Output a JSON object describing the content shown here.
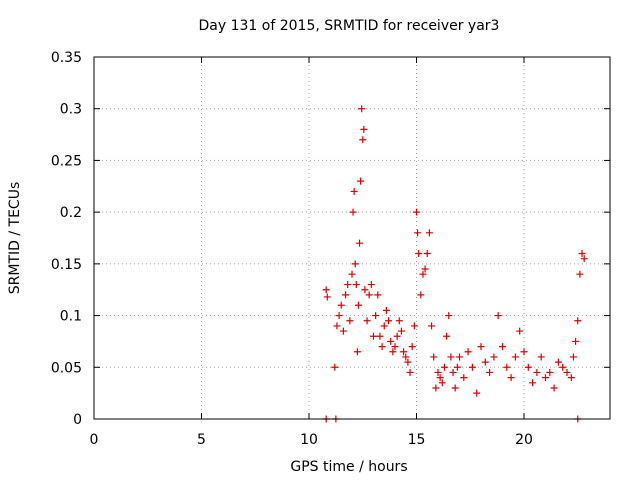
{
  "chart_data": {
    "type": "scatter",
    "title": "Day 131 of 2015, SRMTID for receiver yar3",
    "xlabel": "GPS time / hours",
    "ylabel": "SRMTID / TECUs",
    "xlim": [
      0,
      24
    ],
    "ylim": [
      0,
      0.35
    ],
    "xticks": [
      0,
      5,
      10,
      15,
      20
    ],
    "xtick_labels": [
      "0",
      "5",
      "10",
      "15",
      "20"
    ],
    "yticks": [
      0,
      0.05,
      0.1,
      0.15,
      0.2,
      0.25,
      0.3,
      0.35
    ],
    "ytick_labels": [
      "0",
      "0.05",
      "0.1",
      "0.15",
      "0.2",
      "0.25",
      "0.3",
      "0.35"
    ],
    "grid": true,
    "marker": "+",
    "color": "#e00000",
    "series": [
      {
        "name": "SRMTID",
        "x": [
          10.8,
          10.85,
          11.2,
          11.3,
          11.4,
          11.5,
          11.6,
          11.7,
          11.8,
          11.9,
          12.0,
          12.05,
          12.1,
          12.15,
          12.2,
          12.25,
          12.3,
          12.35,
          12.4,
          12.45,
          12.5,
          12.55,
          12.6,
          12.7,
          12.8,
          12.9,
          13.0,
          13.1,
          13.2,
          13.3,
          13.4,
          13.5,
          13.6,
          13.7,
          13.8,
          13.9,
          14.0,
          14.1,
          14.2,
          14.3,
          14.4,
          14.5,
          14.6,
          14.7,
          14.8,
          14.9,
          15.0,
          15.05,
          15.1,
          15.2,
          15.3,
          15.4,
          15.5,
          15.6,
          15.7,
          15.8,
          15.9,
          16.0,
          16.1,
          16.2,
          16.3,
          16.4,
          16.5,
          16.6,
          16.7,
          16.8,
          16.9,
          17.0,
          17.2,
          17.4,
          17.6,
          17.8,
          18.0,
          18.2,
          18.4,
          18.6,
          18.8,
          19.0,
          19.2,
          19.4,
          19.6,
          19.8,
          20.0,
          20.2,
          20.4,
          20.6,
          20.8,
          21.0,
          21.2,
          21.4,
          21.6,
          21.8,
          22.0,
          22.2,
          22.3,
          22.4,
          22.5,
          22.6,
          22.7,
          22.8,
          10.8,
          11.25,
          22.5
        ],
        "y": [
          0.125,
          0.118,
          0.05,
          0.09,
          0.1,
          0.11,
          0.085,
          0.12,
          0.13,
          0.095,
          0.14,
          0.2,
          0.22,
          0.15,
          0.13,
          0.065,
          0.11,
          0.17,
          0.23,
          0.3,
          0.27,
          0.28,
          0.125,
          0.095,
          0.12,
          0.13,
          0.08,
          0.1,
          0.12,
          0.08,
          0.07,
          0.09,
          0.105,
          0.095,
          0.075,
          0.065,
          0.07,
          0.08,
          0.095,
          0.085,
          0.065,
          0.06,
          0.055,
          0.045,
          0.07,
          0.09,
          0.2,
          0.18,
          0.16,
          0.12,
          0.14,
          0.145,
          0.16,
          0.18,
          0.09,
          0.06,
          0.03,
          0.045,
          0.04,
          0.035,
          0.05,
          0.08,
          0.1,
          0.06,
          0.045,
          0.03,
          0.05,
          0.06,
          0.04,
          0.065,
          0.05,
          0.025,
          0.07,
          0.055,
          0.045,
          0.06,
          0.1,
          0.07,
          0.05,
          0.04,
          0.06,
          0.085,
          0.065,
          0.05,
          0.035,
          0.045,
          0.06,
          0.04,
          0.045,
          0.03,
          0.055,
          0.05,
          0.045,
          0.04,
          0.06,
          0.075,
          0.095,
          0.14,
          0.16,
          0.155,
          0.0,
          0.0,
          0.0
        ]
      }
    ]
  }
}
